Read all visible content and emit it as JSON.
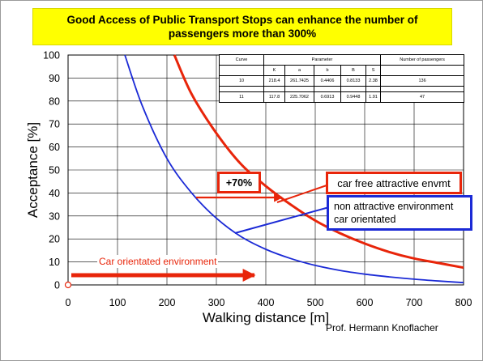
{
  "title_lines": [
    "Good Access of Public Transport Stops can enhance the number of",
    "passengers more than 300%"
  ],
  "author": "Prof. Hermann Knoflacher",
  "annotations": {
    "plus70": "+70%",
    "car_free": "car free attractive envmt",
    "non_attractive_line1": "non attractive environment",
    "non_attractive_line2": "car orientated",
    "car_env": "Car orientated environment"
  },
  "colors": {
    "red_curve": "#e8250a",
    "blue_curve": "#1b2ad6",
    "title_background": "#ffff00"
  },
  "param_table": {
    "header_curve": "Curve",
    "header_parameter": "Parameter",
    "header_passengers": "Number of passengers",
    "sub_headers": [
      "K",
      "a",
      "b",
      "B",
      "S"
    ],
    "rows": [
      {
        "curve": "10",
        "params": [
          "218.4",
          "261.7425",
          "0.4406",
          "0.8133",
          "2.38"
        ],
        "passengers": "136"
      },
      {
        "curve": "11",
        "params": [
          "117.8",
          "225.7062",
          "0.6913",
          "0.9448",
          "1.91"
        ],
        "passengers": "47"
      }
    ]
  },
  "chart_data": {
    "type": "line",
    "xlabel": "Walking distance [m]",
    "ylabel": "Acceptance [%]",
    "xlim": [
      0,
      800
    ],
    "ylim": [
      0,
      100
    ],
    "xticks": [
      "0",
      "100",
      "200",
      "300",
      "400",
      "500",
      "600",
      "700",
      "800"
    ],
    "yticks": [
      "0",
      "10",
      "20",
      "30",
      "40",
      "50",
      "60",
      "70",
      "80",
      "90",
      "100"
    ],
    "grid": true,
    "series": [
      {
        "color": "#e8250a",
        "x": [
          215,
          250,
          300,
          350,
          400,
          450,
          500,
          550,
          600,
          650,
          700,
          750,
          800
        ],
        "y": [
          100,
          83,
          66,
          52.5,
          43,
          35,
          28,
          22.5,
          18,
          14.3,
          11.5,
          9.5,
          7.5
        ]
      },
      {
        "color": "#1b2ad6",
        "x": [
          115,
          150,
          200,
          250,
          300,
          350,
          400,
          450,
          500,
          550,
          600,
          650,
          700,
          750,
          800
        ],
        "y": [
          100,
          78,
          55,
          40,
          29,
          21,
          15.5,
          11.5,
          8.5,
          6.3,
          4.7,
          3.5,
          2.5,
          1.7,
          1
        ]
      }
    ]
  }
}
